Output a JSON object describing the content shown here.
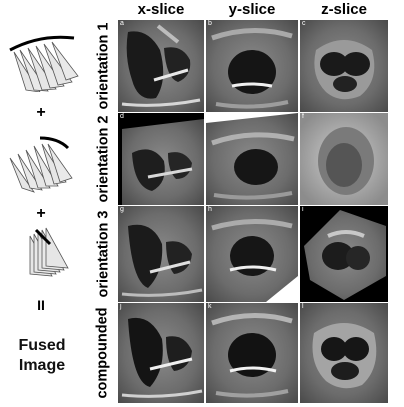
{
  "columns": [
    "x-slice",
    "y-slice",
    "z-slice"
  ],
  "rows": [
    "orientation 1",
    "orientation 2",
    "orientation 3",
    "compounded"
  ],
  "panel_letters": [
    [
      "a",
      "b",
      "c"
    ],
    [
      "d",
      "e",
      "f"
    ],
    [
      "g",
      "h",
      "i"
    ],
    [
      "j",
      "k",
      "l"
    ]
  ],
  "left": {
    "plus": "+",
    "equals": "II",
    "result_line1": "Fused",
    "result_line2": "Image"
  }
}
